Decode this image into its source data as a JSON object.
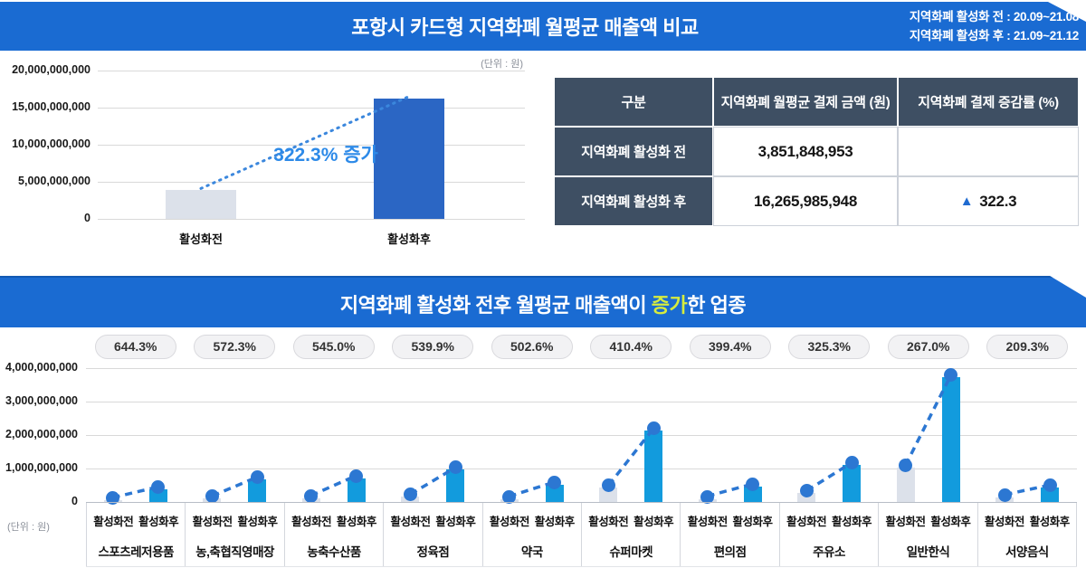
{
  "colors": {
    "banner_blue": "#1a6bd2",
    "table_header_dark": "#3e4f63",
    "bar_before_gray": "#dce1ea",
    "bar_after_top_chart": "#2b66c4",
    "bar_after_bottom_chart": "#129bdd",
    "dot_line_blue": "#2c77d2",
    "annotation_blue": "#2d8ae8",
    "highlight_yellow": "#d6ec3e",
    "arrow_blue": "#1f6bd0"
  },
  "banner1": {
    "title": "포항시 카드형 지역화폐 월평균 매출액 비교",
    "period_before": "지역화폐 활성화 전 : 20.09~21.08",
    "period_after": "지역화폐 활성화 후 : 21.09~21.12"
  },
  "banner2": {
    "title_prefix": "지역화폐 활성화 전후 월평균 매출액이 ",
    "title_highlight": "증가",
    "title_suffix": "한 업종"
  },
  "table": {
    "headers": [
      "구분",
      "지역화폐 월평균 결제 금액 (원)",
      "지역화폐 결제 증감률 (%)"
    ],
    "rows": [
      {
        "label": "지역화폐 활성화 전",
        "amount": "3,851,848,953",
        "change_arrow": "",
        "change_value": ""
      },
      {
        "label": "지역화폐 활성화 후",
        "amount": "16,265,985,948",
        "change_arrow": "▲",
        "change_value": "322.3"
      }
    ]
  },
  "chart_data": [
    {
      "type": "bar",
      "title": "포항시 카드형 지역화폐 월평균 매출액 비교",
      "unit": "(단위 : 원)",
      "categories": [
        "활성화전",
        "활성화후"
      ],
      "values": [
        3851848953,
        16265985948
      ],
      "ylim": [
        0,
        20000000000
      ],
      "yticks": [
        "20,000,000,000",
        "15,000,000,000",
        "10,000,000,000",
        "5,000,000,000",
        "0"
      ],
      "annotation": "322.3% 증가",
      "grid": true,
      "legend": "none",
      "trend": "dotted-line-between-bars"
    },
    {
      "type": "bar",
      "title": "지역화폐 활성화 전후 월평균 매출액이 증가한 업종",
      "unit": "(단위 : 원)",
      "categories": [
        "스포츠레저용품",
        "농,축협직영매장",
        "농축수산품",
        "정육점",
        "약국",
        "슈퍼마켓",
        "편의점",
        "주유소",
        "일반한식",
        "서양음식"
      ],
      "growth_badges": [
        "644.3%",
        "572.3%",
        "545.0%",
        "539.9%",
        "502.6%",
        "410.4%",
        "399.4%",
        "325.3%",
        "267.0%",
        "209.3%"
      ],
      "series": [
        {
          "name": "활성화전",
          "values": [
            50000000,
            100000000,
            110000000,
            150000000,
            86000000,
            420000000,
            92000000,
            260000000,
            1014000000,
            139000000
          ]
        },
        {
          "name": "활성화후",
          "values": [
            372000000,
            672000000,
            710000000,
            960000000,
            518000000,
            2144000000,
            459000000,
            1106000000,
            3721000000,
            430000000
          ]
        }
      ],
      "ylim": [
        0,
        4000000000
      ],
      "yticks": [
        "4,000,000,000",
        "3,000,000,000",
        "2,000,000,000",
        "1,000,000,000",
        "0"
      ],
      "grid": true,
      "legend": "none",
      "trend": "dashed-line-per-category"
    }
  ]
}
